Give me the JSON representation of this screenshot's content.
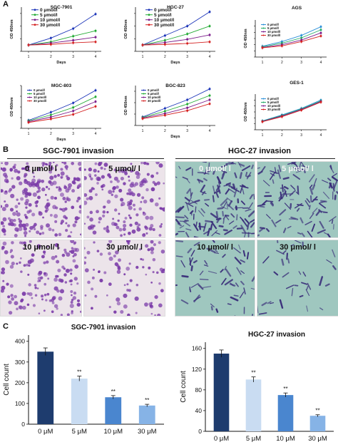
{
  "panel_letters": [
    "A",
    "B",
    "C"
  ],
  "line_charts": {
    "common": {
      "xlabel": "Days",
      "ylabel": "OD 450nm",
      "x_ticks": [
        "1",
        "2",
        "3",
        "4"
      ],
      "series": [
        {
          "name": "0 μmol/l",
          "color": "#1a33b8"
        },
        {
          "name": "5 μmol/l",
          "color": "#22aa33"
        },
        {
          "name": "10 μmol/l",
          "color": "#7a1a8a"
        },
        {
          "name": "30 μmol/l",
          "color": "#d42020"
        }
      ],
      "series_alt": [
        {
          "name": "0 μmol/l",
          "color": "#2a8fd8"
        },
        {
          "name": "5 μmol/l",
          "color": "#22aa66"
        },
        {
          "name": "10 μmol/l",
          "color": "#7a1a8a"
        },
        {
          "name": "30 μmol/l",
          "color": "#d42020"
        }
      ]
    }
  },
  "chart_data": [
    {
      "type": "line",
      "title": "SGC-7901",
      "xlabel": "Days",
      "ylabel": "OD 450nm",
      "x": [
        1,
        2,
        3,
        4
      ],
      "ylim": [
        0,
        1.4
      ],
      "series": [
        {
          "name": "0 μmol/l",
          "values": [
            0.2,
            0.42,
            0.72,
            1.18
          ]
        },
        {
          "name": "5 μmol/l",
          "values": [
            0.2,
            0.3,
            0.48,
            0.65
          ]
        },
        {
          "name": "10 μmol/l",
          "values": [
            0.2,
            0.26,
            0.35,
            0.45
          ]
        },
        {
          "name": "30 μmol/l",
          "values": [
            0.2,
            0.22,
            0.27,
            0.3
          ]
        }
      ]
    },
    {
      "type": "line",
      "title": "HGC-27",
      "xlabel": "Days",
      "ylabel": "OD 450nm",
      "x": [
        1,
        2,
        3,
        4
      ],
      "ylim": [
        0,
        1.4
      ],
      "series": [
        {
          "name": "0 μmol/l",
          "values": [
            0.2,
            0.5,
            0.8,
            1.25
          ]
        },
        {
          "name": "5 μmol/l",
          "values": [
            0.2,
            0.35,
            0.55,
            0.8
          ]
        },
        {
          "name": "10 μmol/l",
          "values": [
            0.2,
            0.28,
            0.38,
            0.52
          ]
        },
        {
          "name": "30 μmol/l",
          "values": [
            0.2,
            0.22,
            0.25,
            0.3
          ]
        }
      ]
    },
    {
      "type": "line",
      "title": "AGS",
      "xlabel": "",
      "ylabel": "OD 450nm",
      "x": [
        1,
        2,
        3,
        4
      ],
      "ylim": [
        0,
        1.2
      ],
      "series": [
        {
          "name": "0 μmol/l",
          "values": [
            0.35,
            0.5,
            0.7,
            0.98
          ]
        },
        {
          "name": "5 μmol/l",
          "values": [
            0.33,
            0.45,
            0.62,
            0.88
          ]
        },
        {
          "name": "10 μmol/l",
          "values": [
            0.31,
            0.4,
            0.55,
            0.78
          ]
        },
        {
          "name": "30 μmol/l",
          "values": [
            0.3,
            0.36,
            0.5,
            0.68
          ]
        }
      ]
    },
    {
      "type": "line",
      "title": "MGC-803",
      "xlabel": "Days",
      "ylabel": "OD 450nm",
      "x": [
        1,
        2,
        3,
        4
      ],
      "ylim": [
        0,
        1.6
      ],
      "series": [
        {
          "name": "0 μmol/l",
          "values": [
            0.3,
            0.6,
            0.95,
            1.42
          ]
        },
        {
          "name": "5 μmol/l",
          "values": [
            0.28,
            0.5,
            0.78,
            1.18
          ]
        },
        {
          "name": "10 μmol/l",
          "values": [
            0.25,
            0.42,
            0.65,
            1.0
          ]
        },
        {
          "name": "30 μmol/l",
          "values": [
            0.22,
            0.35,
            0.52,
            0.82
          ]
        }
      ]
    },
    {
      "type": "line",
      "title": "BGC-823",
      "xlabel": "Days",
      "ylabel": "OD 450nm",
      "x": [
        1,
        2,
        3,
        4
      ],
      "ylim": [
        0,
        1.4
      ],
      "series": [
        {
          "name": "0 μmol/l",
          "values": [
            0.3,
            0.6,
            0.9,
            1.28
          ]
        },
        {
          "name": "5 μmol/l",
          "values": [
            0.28,
            0.5,
            0.75,
            1.05
          ]
        },
        {
          "name": "10 μmol/l",
          "values": [
            0.26,
            0.42,
            0.62,
            0.9
          ]
        },
        {
          "name": "30 μmol/l",
          "values": [
            0.24,
            0.36,
            0.52,
            0.76
          ]
        }
      ]
    },
    {
      "type": "line",
      "title": "GES-1",
      "xlabel": "",
      "ylabel": "OD 450nm",
      "x": [
        1,
        2,
        3,
        4
      ],
      "ylim": [
        0,
        1.2
      ],
      "series": [
        {
          "name": "0 μmol/l",
          "values": [
            0.3,
            0.5,
            0.72,
            1.0
          ]
        },
        {
          "name": "5 μmol/l",
          "values": [
            0.29,
            0.48,
            0.7,
            0.97
          ]
        },
        {
          "name": "10 μmol/l",
          "values": [
            0.28,
            0.46,
            0.68,
            0.95
          ]
        },
        {
          "name": "30 μmol/l",
          "values": [
            0.27,
            0.44,
            0.66,
            0.93
          ]
        }
      ]
    },
    {
      "type": "bar",
      "title": "SGC-7901  invasion",
      "ylabel": "Cell count",
      "categories": [
        "0 μM",
        "5 μM",
        "10 μM",
        "30 μM"
      ],
      "values": [
        350,
        220,
        130,
        90
      ],
      "errors": [
        18,
        12,
        8,
        6
      ],
      "annotations": [
        "",
        "**",
        "**",
        "**"
      ],
      "yticks": [
        0,
        100,
        200,
        300,
        400
      ],
      "ylim": [
        0,
        430
      ],
      "colors": [
        "#1e3c6e",
        "#c9dcf2",
        "#4a86cf",
        "#86b3e6"
      ]
    },
    {
      "type": "bar",
      "title": "HGC-27  invasion",
      "ylabel": "Cell count",
      "categories": [
        "0 μM",
        "5 μM",
        "10 μM",
        "30 μM"
      ],
      "values": [
        150,
        100,
        70,
        30
      ],
      "errors": [
        7,
        5,
        4,
        2
      ],
      "annotations": [
        "",
        "**",
        "**",
        "**"
      ],
      "yticks": [
        0,
        40,
        80,
        120,
        160
      ],
      "ylim": [
        0,
        172
      ],
      "colors": [
        "#1e3c6e",
        "#c9dcf2",
        "#4a86cf",
        "#86b3e6"
      ]
    }
  ],
  "invasion": {
    "sgc_title": "SGC-7901 invasion",
    "hgc_title": "HGC-27  invasion",
    "labels": [
      "0 μmol/ l",
      "5 μmol/ l",
      "10 μmol/ l",
      "30 μmol/ l"
    ],
    "sgc_colors": {
      "bg": "#ece4ea",
      "cell": "#7a3aa8"
    },
    "hgc_colors": {
      "bg": "#9fc7bf",
      "cell": "#3a2e7a"
    }
  }
}
